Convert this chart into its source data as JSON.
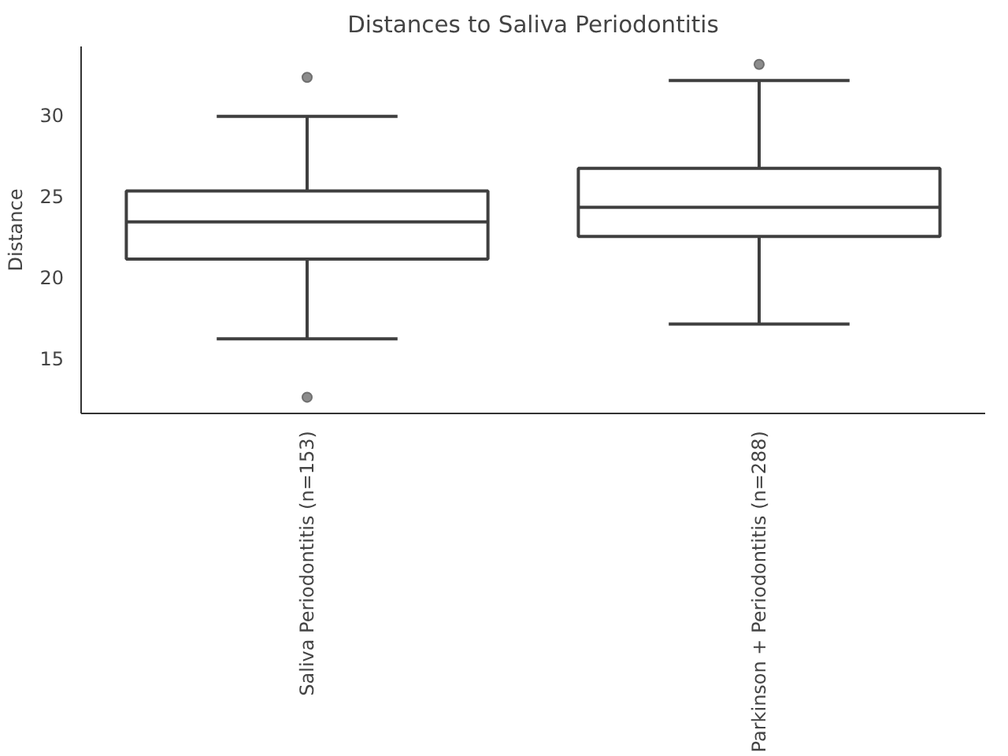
{
  "chart_data": {
    "type": "box",
    "title": "Distances to Saliva Periodontitis",
    "ylabel": "Distance",
    "categories": [
      "Saliva Periodontitis (n=153)",
      "Parkinson + Periodontitis (n=288)"
    ],
    "boxes": [
      {
        "low": 16.2,
        "q1": 21.1,
        "median": 23.4,
        "q3": 25.3,
        "high": 29.9,
        "outliers": [
          32.3,
          12.6
        ]
      },
      {
        "low": 17.1,
        "q1": 22.5,
        "median": 24.3,
        "q3": 26.7,
        "high": 32.1,
        "outliers": [
          33.1
        ]
      }
    ],
    "ylim": [
      11.6,
      34.2
    ],
    "yticks": [
      15,
      20,
      25,
      30
    ],
    "grid": false
  }
}
